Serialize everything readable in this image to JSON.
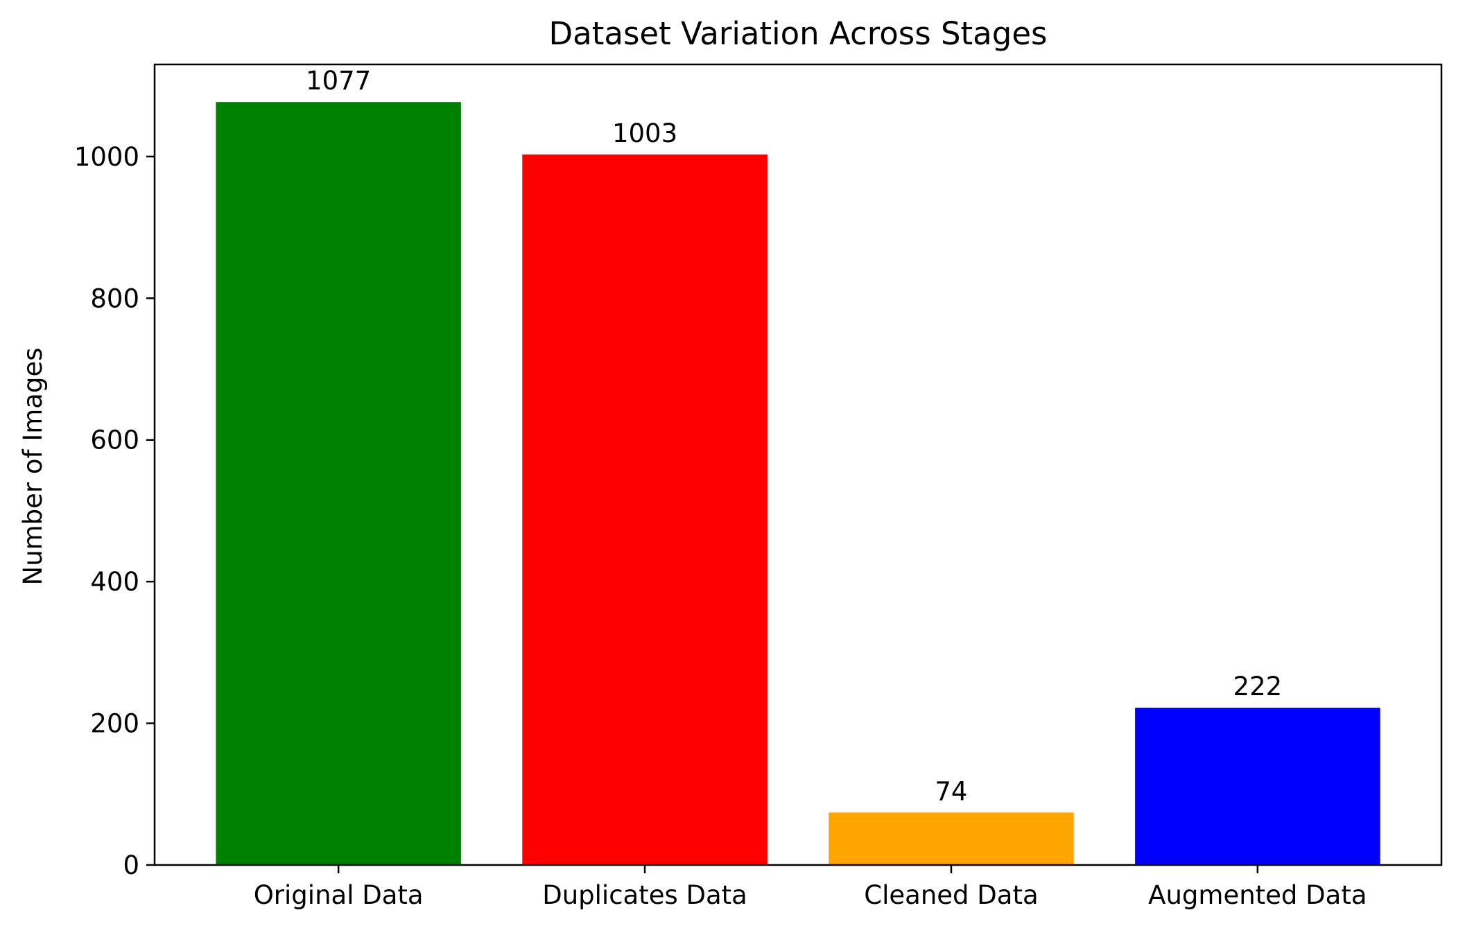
{
  "chart_data": {
    "type": "bar",
    "title": "Dataset Variation Across Stages",
    "xlabel": "",
    "ylabel": "Number of Images",
    "categories": [
      "Original Data",
      "Duplicates Data",
      "Cleaned Data",
      "Augmented Data"
    ],
    "values": [
      1077,
      1003,
      74,
      222
    ],
    "data_labels": [
      "1077",
      "1003",
      "74",
      "222"
    ],
    "colors": [
      "#008000",
      "#ff0000",
      "#ffa500",
      "#0000ff"
    ],
    "ylim": [
      0,
      1130
    ],
    "yticks": [
      0,
      200,
      400,
      600,
      800,
      1000
    ],
    "ytick_labels": [
      "0",
      "200",
      "400",
      "600",
      "800",
      "1000"
    ],
    "grid": false,
    "legend": "none"
  }
}
